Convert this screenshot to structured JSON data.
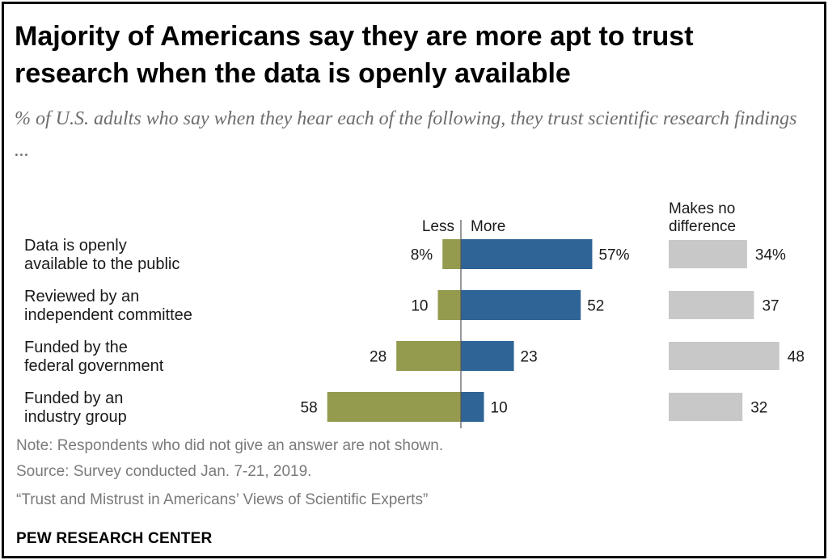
{
  "header": {
    "title": "Majority of Americans say they are more apt to trust research when the data is openly available",
    "subtitle": "% of U.S. adults who say when they hear each of the following, they trust scientific research findings ..."
  },
  "footer": {
    "note": "Note: Respondents who did not give an answer are not shown.",
    "source": "Source: Survey conducted Jan. 7-21, 2019.",
    "report": "“Trust and Mistrust in Americans’ Views of Scientific Experts”",
    "brand": "PEW RESEARCH CENTER"
  },
  "chart_data": {
    "type": "bar",
    "orientation": "horizontal",
    "categories": [
      "Data is openly available to the public",
      "Reviewed by an independent committee",
      "Funded by the federal government",
      "Funded by an industry group"
    ],
    "category_lines": [
      [
        "Data is openly",
        "available to the public"
      ],
      [
        "Reviewed by an",
        "independent committee"
      ],
      [
        "Funded by the",
        "federal government"
      ],
      [
        "Funded by an",
        "industry group"
      ]
    ],
    "series": [
      {
        "name": "Less",
        "color": "#959b4e",
        "values": [
          8,
          10,
          28,
          58
        ],
        "labels": [
          "8%",
          "10",
          "28",
          "58"
        ]
      },
      {
        "name": "More",
        "color": "#2e6496",
        "values": [
          57,
          52,
          23,
          10
        ],
        "labels": [
          "57%",
          "52",
          "23",
          "10"
        ]
      },
      {
        "name": "Makes no difference",
        "color": "#c8c8c8",
        "values": [
          34,
          37,
          48,
          32
        ],
        "labels": [
          "34%",
          "37",
          "48",
          "32"
        ]
      }
    ],
    "legend_lines": {
      "less": "Less",
      "more": "More",
      "nodiff": [
        "Makes no",
        "difference"
      ]
    },
    "legend_placement": "top",
    "grid": false
  }
}
